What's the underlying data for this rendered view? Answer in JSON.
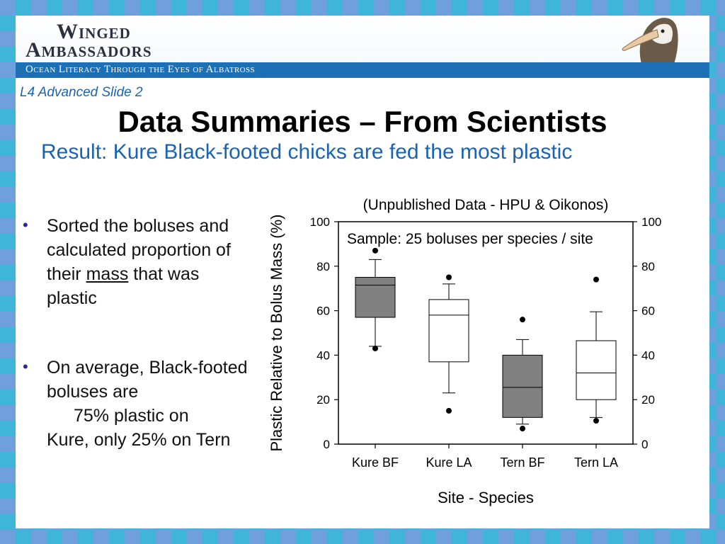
{
  "header": {
    "logo_line1": "Winged",
    "logo_line2": "Ambassadors",
    "tagline": "Ocean Literacy Through the Eyes of Albatross"
  },
  "slide": {
    "label": "L4 Advanced Slide 2",
    "title": "Data Summaries – From Scientists",
    "subtitle": "Result:  Kure Black-footed chicks are fed the most plastic"
  },
  "bullets": [
    {
      "before": "Sorted the boluses and calculated proportion of their ",
      "underlined": "mass",
      "after": " that was plastic"
    },
    {
      "line1": "On average, Black-footed boluses are",
      "line2": "75% plastic on",
      "line3": "Kure, only 25% on Tern"
    }
  ],
  "colors": {
    "frame": "#3fb6d9",
    "banner_bar": "#1d6fb6",
    "accent_text": "#1a63b3",
    "bf_box_fill": "#808080",
    "la_box_fill": "#ffffff"
  },
  "chart_data": {
    "type": "boxplot",
    "title": "(Unpublished Data - HPU & Oikonos)",
    "annotation": "Sample:  25 boluses per species / site",
    "xlabel": "Site - Species",
    "ylabel": "Plastic Relative to Bolus Mass (%)",
    "ylim": [
      0,
      100
    ],
    "yticks": [
      0,
      20,
      40,
      60,
      80,
      100
    ],
    "right_axis_ticks": true,
    "categories": [
      "Kure BF",
      "Kure LA",
      "Tern BF",
      "Tern LA"
    ],
    "boxes": [
      {
        "category": "Kure BF",
        "whisker_low": 44,
        "q1": 57,
        "median": 71.5,
        "q3": 75,
        "whisker_high": 83,
        "outliers": [
          87,
          43
        ],
        "fill": "#808080"
      },
      {
        "category": "Kure LA",
        "whisker_low": 23,
        "q1": 37,
        "median": 58,
        "q3": 65,
        "whisker_high": 72,
        "outliers": [
          75,
          15
        ],
        "fill": "#ffffff"
      },
      {
        "category": "Tern BF",
        "whisker_low": 9,
        "q1": 12,
        "median": 25.5,
        "q3": 40,
        "whisker_high": 47,
        "outliers": [
          56,
          7
        ],
        "fill": "#808080"
      },
      {
        "category": "Tern LA",
        "whisker_low": 12,
        "q1": 20,
        "median": 32,
        "q3": 46.5,
        "whisker_high": 59.5,
        "outliers": [
          74,
          10.5
        ],
        "fill": "#ffffff"
      }
    ]
  }
}
